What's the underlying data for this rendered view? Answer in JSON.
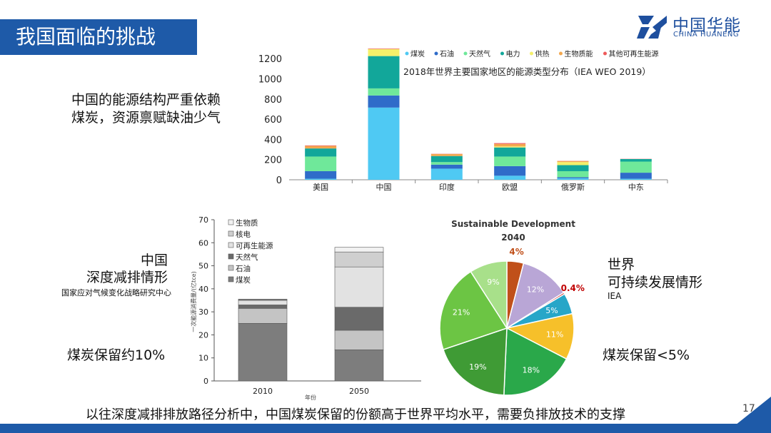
{
  "slide": {
    "title": "我国面临的挑战",
    "logo_cn": "中国华能",
    "logo_en": "CHINA HUANENG",
    "main_text": "中国的能源结构严重依赖煤炭，资源禀赋缺油少气",
    "china_label_1": "中国",
    "china_label_2": "深度减排情形",
    "china_source": "国家应对气候变化战略研究中心",
    "china_coal_note": "煤炭保留约10%",
    "world_label_1": "世界",
    "world_label_2": "可持续发展情形",
    "world_source": "IEA",
    "world_coal_note": "煤炭保留<5%",
    "bottom_text": "以往深度减排排放路径分析中，中国煤炭保留的份额高于世界平均水平，需要负排放技术的支撑",
    "page_number": "17",
    "colors": {
      "brand_blue": "#1e5aa8"
    }
  },
  "chart_data": [
    {
      "type": "bar",
      "stacked": true,
      "title": "2018年世界主要国家地区的能源类型分布（IEA WEO 2019）",
      "categories": [
        "美国",
        "中国",
        "印度",
        "欧盟",
        "俄罗斯",
        "中东"
      ],
      "ylim": [
        0,
        1300
      ],
      "yticks": [
        0,
        200,
        400,
        600,
        800,
        1000,
        1200
      ],
      "legend_position": "top",
      "series": [
        {
          "name": "煤炭",
          "color": "#4fc9f3",
          "values": [
            10,
            715,
            110,
            40,
            15,
            10
          ]
        },
        {
          "name": "石油",
          "color": "#2f6cc9",
          "values": [
            75,
            120,
            40,
            95,
            10,
            60
          ]
        },
        {
          "name": "天然气",
          "color": "#6fe89a",
          "values": [
            145,
            70,
            25,
            95,
            60,
            110
          ]
        },
        {
          "name": "电力",
          "color": "#12a79a",
          "values": [
            80,
            320,
            60,
            90,
            60,
            25
          ]
        },
        {
          "name": "供热",
          "color": "#f5f06a",
          "values": [
            0,
            70,
            0,
            10,
            30,
            0
          ]
        },
        {
          "name": "生物质能",
          "color": "#f3a84f",
          "values": [
            25,
            0,
            20,
            25,
            10,
            0
          ]
        },
        {
          "name": "其他可再生能源",
          "color": "#ee5a5a",
          "values": [
            5,
            5,
            2,
            8,
            2,
            2
          ]
        }
      ]
    },
    {
      "type": "bar",
      "stacked": true,
      "categories": [
        "2010",
        "2050"
      ],
      "xlabel": "年份",
      "ylabel": "一次能源消费量/(亿tce)",
      "ylim": [
        0,
        70
      ],
      "yticks": [
        0,
        10,
        20,
        30,
        40,
        50,
        60,
        70
      ],
      "legend_position": "top-left",
      "series": [
        {
          "name": "煤炭",
          "color": "#7d7d7d",
          "values": [
            25,
            13.5
          ]
        },
        {
          "name": "石油",
          "color": "#c4c4c4",
          "values": [
            6.5,
            8.5
          ]
        },
        {
          "name": "天然气",
          "color": "#6a6a6a",
          "values": [
            1.5,
            10
          ]
        },
        {
          "name": "可再生能源",
          "color": "#e2e2e2",
          "values": [
            2,
            17.5
          ]
        },
        {
          "name": "核电",
          "color": "#cfcfcf",
          "values": [
            0.3,
            6.5
          ]
        },
        {
          "name": "生物质",
          "color": "#f2f2f2",
          "values": [
            0.2,
            2
          ]
        }
      ]
    },
    {
      "type": "pie",
      "title": "Sustainable Development 2040",
      "slices": [
        {
          "label": "4%",
          "value": 4,
          "color": "#c0501a"
        },
        {
          "label": "12%",
          "value": 12,
          "color": "#b9a6d6"
        },
        {
          "label": "0.4%",
          "value": 0.4,
          "color": "#c00000"
        },
        {
          "label": "5%",
          "value": 5,
          "color": "#27a6c8"
        },
        {
          "label": "11%",
          "value": 11,
          "color": "#f6c02a"
        },
        {
          "label": "18%",
          "value": 18,
          "color": "#2aa84a"
        },
        {
          "label": "19%",
          "value": 19,
          "color": "#3f9b35"
        },
        {
          "label": "21%",
          "value": 21,
          "color": "#6cc544"
        },
        {
          "label": "9%",
          "value": 9,
          "color": "#a8e08a"
        }
      ]
    }
  ]
}
